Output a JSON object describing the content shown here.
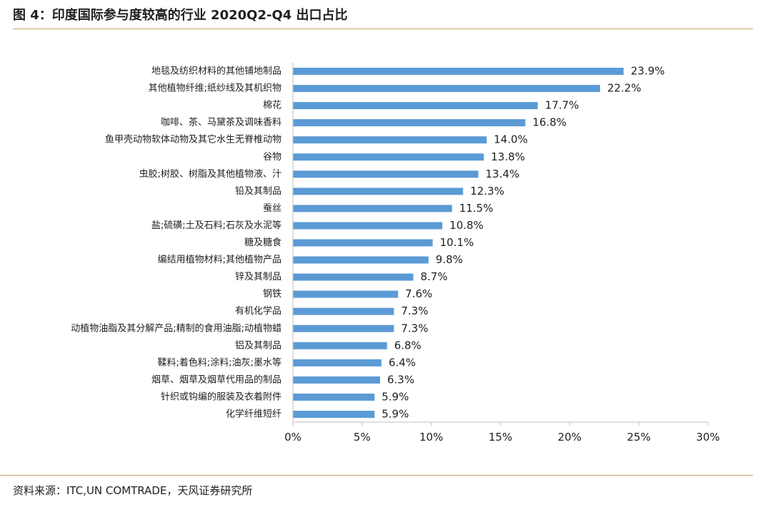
{
  "title": "图 4：印度国际参与度较高的行业 2020Q2-Q4 出口占比",
  "source": "资料来源：ITC,UN COMTRADE，天风证券研究所",
  "colors": {
    "bar": "#5b9bd5",
    "rule": "#c8a064",
    "axis": "#bfbfbf"
  },
  "chart_data": {
    "type": "bar",
    "orientation": "horizontal",
    "categories": [
      "地毯及纺织材料的其他铺地制品",
      "其他植物纤维;纸纱线及其机织物",
      "棉花",
      "咖啡、茶、马黛茶及调味香料",
      "鱼甲壳动物软体动物及其它水生无脊椎动物",
      "谷物",
      "虫胶;树胶、树脂及其他植物液、汁",
      "铅及其制品",
      "蚕丝",
      "盐;硫磺;土及石料;石灰及水泥等",
      "糖及糖食",
      "编结用植物材料;其他植物产品",
      "锌及其制品",
      "钢铁",
      "有机化学品",
      "动植物油脂及其分解产品;精制的食用油脂;动植物蜡",
      "铝及其制品",
      "鞣料;着色料;涂料;油灰;墨水等",
      "烟草、烟草及烟草代用品的制品",
      "针织或钩编的服装及衣着附件",
      "化学纤维短纤"
    ],
    "values": [
      23.9,
      22.2,
      17.7,
      16.8,
      14.0,
      13.8,
      13.4,
      12.3,
      11.5,
      10.8,
      10.1,
      9.8,
      8.7,
      7.6,
      7.3,
      7.3,
      6.8,
      6.4,
      6.3,
      5.9,
      5.9
    ],
    "value_labels": [
      "23.9%",
      "22.2%",
      "17.7%",
      "16.8%",
      "14.0%",
      "13.8%",
      "13.4%",
      "12.3%",
      "11.5%",
      "10.8%",
      "10.1%",
      "9.8%",
      "8.7%",
      "7.6%",
      "7.3%",
      "7.3%",
      "6.8%",
      "6.4%",
      "6.3%",
      "5.9%",
      "5.9%"
    ],
    "xlim": [
      0,
      30
    ],
    "xticks": [
      0,
      5,
      10,
      15,
      20,
      25,
      30
    ],
    "xtick_labels": [
      "0%",
      "5%",
      "10%",
      "15%",
      "20%",
      "25%",
      "30%"
    ],
    "grid": false,
    "legend": "none"
  }
}
